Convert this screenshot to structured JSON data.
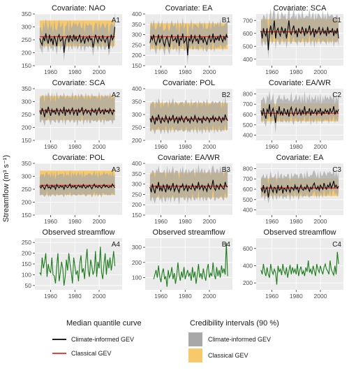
{
  "figure": {
    "ylabel": "Streamflow (m³ s⁻¹)",
    "colors": {
      "climate_band": "#a8a8a8",
      "classical_band": "#f7c96b",
      "climate_line": "#000000",
      "classical_line": "#e8261c",
      "observed_line": "#1a7a1a",
      "panel_bg": "#ebebeb"
    }
  },
  "legend": {
    "median_title": "Median quantile curve",
    "median_items": [
      {
        "label": "Climate-informed GEV",
        "color": "#000000"
      },
      {
        "label": "Classical GEV",
        "color": "#e8261c"
      }
    ],
    "ci_title": "Credibility intervals (90 %)",
    "ci_items": [
      {
        "label": "Climate-informed GEV",
        "color": "#a8a8a8"
      },
      {
        "label": "Classical GEV",
        "color": "#f7c96b"
      }
    ]
  },
  "chart_data": [
    {
      "id": "A1",
      "type": "line",
      "title": "Covariate: NAO",
      "x_start": 1951,
      "x_end": 2013,
      "xticks": [
        1960,
        1980,
        2000
      ],
      "ylim": [
        150,
        350
      ],
      "yticks": [
        150,
        200,
        250,
        300,
        350
      ],
      "classical_median": 262,
      "classical_band": [
        225,
        325
      ],
      "climate_band_width": [
        30,
        50
      ],
      "climate_median": [
        255,
        240,
        230,
        262,
        245,
        275,
        250,
        235,
        270,
        245,
        255,
        230,
        265,
        250,
        225,
        260,
        270,
        245,
        250,
        262,
        200,
        245,
        258,
        265,
        240,
        268,
        252,
        245,
        270,
        250,
        262,
        245,
        255,
        270,
        240,
        250,
        262,
        235,
        255,
        260,
        245,
        265,
        250,
        255,
        220,
        245,
        270,
        255,
        240,
        262,
        250,
        245,
        268,
        250,
        240,
        255,
        262,
        215,
        245,
        270,
        250,
        260,
        300
      ]
    },
    {
      "id": "B1",
      "type": "line",
      "title": "Covariate: EA",
      "x_start": 1951,
      "x_end": 2015,
      "xticks": [
        1960,
        1980,
        2000
      ],
      "ylim": [
        150,
        400
      ],
      "yticks": [
        150,
        200,
        250,
        300,
        350,
        400
      ],
      "classical_median": 290,
      "classical_band": [
        230,
        355
      ],
      "climate_band_width": [
        40,
        65
      ],
      "climate_median": [
        260,
        290,
        275,
        300,
        265,
        250,
        275,
        300,
        260,
        280,
        295,
        262,
        245,
        275,
        290,
        265,
        240,
        282,
        300,
        270,
        275,
        285,
        260,
        300,
        245,
        282,
        275,
        305,
        260,
        270,
        290,
        200,
        282,
        270,
        300,
        260,
        275,
        295,
        270,
        280,
        255,
        300,
        275,
        285,
        260,
        290,
        270,
        250,
        282,
        295,
        265,
        275,
        305,
        260,
        285,
        275,
        290,
        270,
        300,
        280,
        265,
        290,
        275,
        300,
        285
      ]
    },
    {
      "id": "C1",
      "type": "line",
      "title": "Covariate: SCA",
      "x_start": 1951,
      "x_end": 2015,
      "xticks": [
        1960,
        1980,
        2000
      ],
      "ylim": [
        350,
        750
      ],
      "yticks": [
        400,
        500,
        600,
        700
      ],
      "classical_median": 612,
      "classical_band": [
        535,
        710
      ],
      "climate_band_width": [
        75,
        115
      ],
      "climate_median": [
        620,
        560,
        640,
        600,
        580,
        640,
        470,
        610,
        660,
        590,
        630,
        700,
        560,
        620,
        640,
        600,
        580,
        650,
        620,
        600,
        640,
        560,
        620,
        700,
        610,
        590,
        630,
        660,
        600,
        620,
        570,
        640,
        610,
        600,
        650,
        620,
        580,
        640,
        600,
        620,
        660,
        590,
        610,
        640,
        570,
        630,
        600,
        620,
        650,
        590,
        610,
        640,
        600,
        620,
        580,
        650,
        600,
        620,
        610,
        640,
        580,
        620,
        600,
        640,
        560
      ]
    },
    {
      "id": "A2",
      "type": "line",
      "title": "Covariate: SCA",
      "x_start": 1951,
      "x_end": 2013,
      "xticks": [
        1960,
        1980,
        2000
      ],
      "ylim": [
        150,
        350
      ],
      "yticks": [
        150,
        200,
        250,
        300,
        350
      ],
      "classical_median": 265,
      "classical_band": [
        228,
        322
      ],
      "climate_band_width": [
        35,
        55
      ],
      "climate_median": [
        265,
        250,
        275,
        260,
        240,
        270,
        255,
        280,
        262,
        245,
        270,
        258,
        265,
        250,
        275,
        260,
        248,
        270,
        262,
        255,
        280,
        245,
        268,
        260,
        270,
        252,
        265,
        275,
        250,
        262,
        268,
        245,
        270,
        258,
        265,
        278,
        250,
        262,
        270,
        255,
        265,
        260,
        248,
        272,
        262,
        258,
        270,
        250,
        265,
        275,
        255,
        262,
        268,
        250,
        270,
        260,
        265,
        255,
        272,
        260,
        250,
        268,
        262
      ]
    },
    {
      "id": "B2",
      "type": "line",
      "title": "Covariate: POL",
      "x_start": 1951,
      "x_end": 2015,
      "xticks": [
        1960,
        1980,
        2000
      ],
      "ylim": [
        200,
        400
      ],
      "yticks": [
        200,
        250,
        300,
        350,
        400
      ],
      "classical_median": 283,
      "classical_band": [
        240,
        345
      ],
      "climate_band_width": [
        40,
        60
      ],
      "climate_median": [
        285,
        270,
        295,
        280,
        262,
        290,
        275,
        300,
        282,
        265,
        288,
        278,
        272,
        295,
        280,
        268,
        290,
        276,
        284,
        298,
        270,
        282,
        290,
        265,
        288,
        276,
        294,
        280,
        270,
        286,
        292,
        275,
        282,
        268,
        290,
        280,
        274,
        296,
        282,
        270,
        288,
        278,
        284,
        266,
        292,
        280,
        276,
        290,
        284,
        270,
        286,
        280,
        294,
        272,
        288,
        280,
        276,
        292,
        282,
        270,
        288,
        278,
        300,
        284,
        276
      ]
    },
    {
      "id": "C2",
      "type": "line",
      "title": "Covariate: EA/WR",
      "x_start": 1951,
      "x_end": 2015,
      "xticks": [
        1960,
        1980,
        2000
      ],
      "ylim": [
        350,
        850
      ],
      "yticks": [
        400,
        500,
        600,
        700,
        800
      ],
      "classical_median": 612,
      "classical_band": [
        535,
        705
      ],
      "climate_band_width": [
        80,
        125
      ],
      "climate_median": [
        640,
        590,
        660,
        600,
        560,
        650,
        620,
        700,
        580,
        630,
        660,
        600,
        520,
        640,
        610,
        680,
        600,
        630,
        590,
        660,
        620,
        600,
        650,
        580,
        640,
        670,
        610,
        590,
        630,
        660,
        600,
        620,
        650,
        590,
        640,
        610,
        680,
        600,
        630,
        620,
        660,
        590,
        640,
        610,
        620,
        650,
        600,
        640,
        620,
        660,
        590,
        630,
        610,
        650,
        620,
        640,
        600,
        660,
        620,
        630,
        680,
        600,
        640,
        620,
        650
      ]
    },
    {
      "id": "A3",
      "type": "line",
      "title": "Covariate: POL",
      "x_start": 1951,
      "x_end": 2013,
      "xticks": [
        1960,
        1980,
        2000
      ],
      "ylim": [
        150,
        350
      ],
      "yticks": [
        150,
        200,
        250,
        300,
        350
      ],
      "classical_median": 265,
      "classical_band": [
        228,
        322
      ],
      "climate_band_width": [
        30,
        45
      ],
      "climate_median": [
        262,
        255,
        265,
        258,
        250,
        262,
        268,
        255,
        260,
        252,
        265,
        258,
        262,
        250,
        268,
        260,
        255,
        264,
        258,
        262,
        250,
        266,
        260,
        256,
        262,
        270,
        255,
        262,
        258,
        264,
        252,
        260,
        266,
        258,
        262,
        255,
        268,
        260,
        254,
        262,
        258,
        266,
        260,
        252,
        262,
        270,
        258,
        262,
        256,
        264,
        260,
        254,
        262,
        268,
        258,
        264,
        260,
        256,
        262,
        258,
        270,
        262,
        256
      ]
    },
    {
      "id": "B3",
      "type": "line",
      "title": "Covariate: EA/WR",
      "x_start": 1951,
      "x_end": 2015,
      "xticks": [
        1960,
        1980,
        2000
      ],
      "ylim": [
        150,
        400
      ],
      "yticks": [
        150,
        200,
        250,
        300,
        350,
        400
      ],
      "classical_median": 290,
      "classical_band": [
        235,
        355
      ],
      "climate_band_width": [
        50,
        75
      ],
      "climate_median": [
        285,
        260,
        300,
        275,
        255,
        290,
        280,
        310,
        270,
        285,
        265,
        295,
        280,
        260,
        300,
        275,
        290,
        270,
        285,
        305,
        265,
        280,
        295,
        275,
        260,
        290,
        285,
        300,
        270,
        280,
        295,
        265,
        290,
        280,
        275,
        300,
        285,
        270,
        290,
        280,
        310,
        275,
        285,
        295,
        270,
        290,
        280,
        265,
        300,
        285,
        275,
        290,
        320,
        280,
        270,
        295,
        285,
        275,
        300,
        290,
        280,
        275,
        310,
        290,
        285
      ]
    },
    {
      "id": "C3",
      "type": "line",
      "title": "Covariate: EA",
      "x_start": 1951,
      "x_end": 2015,
      "xticks": [
        1960,
        1980,
        2000
      ],
      "ylim": [
        350,
        850
      ],
      "yticks": [
        400,
        500,
        600,
        700,
        800
      ],
      "classical_median": 612,
      "classical_band": [
        535,
        705
      ],
      "climate_band_width": [
        70,
        120
      ],
      "climate_median": [
        610,
        580,
        640,
        560,
        600,
        620,
        520,
        590,
        640,
        600,
        570,
        620,
        610,
        560,
        640,
        590,
        600,
        630,
        560,
        610,
        600,
        580,
        640,
        600,
        570,
        620,
        610,
        590,
        640,
        600,
        620,
        570,
        610,
        640,
        600,
        590,
        620,
        600,
        640,
        610,
        580,
        620,
        600,
        640,
        660,
        610,
        600,
        630,
        590,
        640,
        620,
        600,
        660,
        620,
        600,
        640,
        620,
        660,
        610,
        640,
        680,
        620,
        640,
        610,
        630
      ]
    },
    {
      "id": "A4",
      "type": "line",
      "title": "Observed streamflow",
      "x_start": 1951,
      "x_end": 2013,
      "xticks": [
        1960,
        1980,
        2000
      ],
      "ylim": [
        30,
        270
      ],
      "yticks": [
        50,
        100,
        150,
        200,
        250
      ],
      "observed": [
        110,
        100,
        180,
        130,
        160,
        200,
        90,
        150,
        120,
        110,
        180,
        100,
        95,
        60,
        140,
        200,
        70,
        110,
        160,
        130,
        50,
        90,
        170,
        120,
        200,
        150,
        110,
        60,
        180,
        140,
        100,
        120,
        70,
        150,
        190,
        110,
        130,
        80,
        160,
        220,
        120,
        90,
        170,
        140,
        100,
        120,
        210,
        90,
        160,
        130,
        230,
        110,
        80,
        150,
        200,
        100,
        170,
        130,
        180,
        120,
        160,
        210,
        140
      ]
    },
    {
      "id": "B4",
      "type": "line",
      "title": "Observed streamflow",
      "x_start": 1954,
      "x_end": 2015,
      "xticks": [
        1960,
        1980,
        2000
      ],
      "ylim": [
        20,
        360
      ],
      "yticks": [
        100,
        200,
        300
      ],
      "observed": [
        90,
        120,
        150,
        100,
        180,
        110,
        70,
        130,
        160,
        90,
        110,
        40,
        150,
        100,
        120,
        170,
        90,
        130,
        60,
        110,
        200,
        120,
        80,
        140,
        100,
        170,
        90,
        120,
        150,
        110,
        130,
        80,
        170,
        100,
        140,
        60,
        120,
        190,
        100,
        130,
        90,
        160,
        110,
        80,
        150,
        190,
        100,
        130,
        110,
        200,
        120,
        90,
        170,
        110,
        150,
        100,
        180,
        130,
        160,
        120,
        330,
        110
      ]
    },
    {
      "id": "C4",
      "type": "line",
      "title": "Observed streamflow",
      "x_start": 1951,
      "x_end": 2015,
      "xticks": [
        1960,
        1980,
        2000
      ],
      "ylim": [
        120,
        720
      ],
      "yticks": [
        200,
        400,
        600
      ],
      "observed": [
        350,
        300,
        420,
        330,
        280,
        380,
        300,
        260,
        420,
        340,
        300,
        360,
        320,
        180,
        400,
        330,
        360,
        290,
        420,
        340,
        300,
        380,
        260,
        340,
        410,
        300,
        380,
        320,
        360,
        300,
        420,
        280,
        350,
        390,
        300,
        340,
        280,
        380,
        330,
        460,
        320,
        360,
        300,
        400,
        340,
        280,
        420,
        360,
        320,
        400,
        340,
        300,
        380,
        420,
        360,
        340,
        300,
        460,
        360,
        320,
        290,
        400,
        300,
        560,
        420
      ]
    }
  ]
}
